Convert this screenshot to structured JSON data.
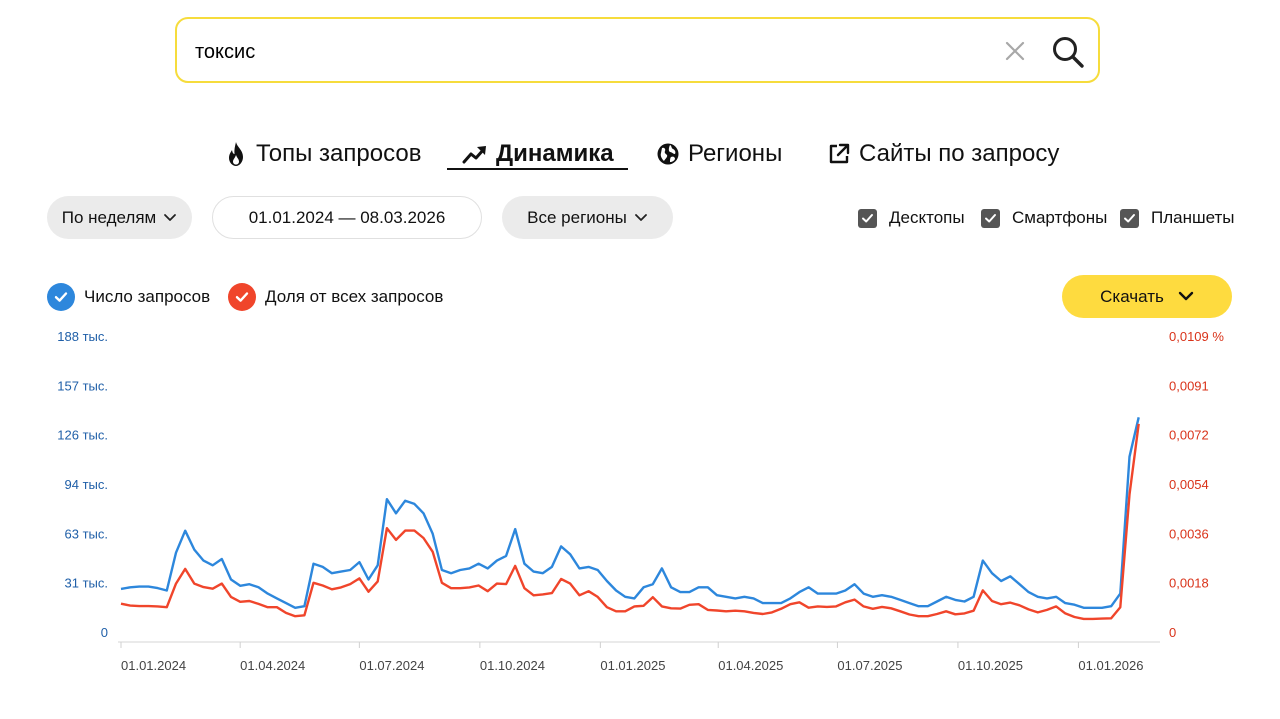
{
  "search": {
    "value": "токсис",
    "clear_icon": "close-icon",
    "submit_icon": "search-icon"
  },
  "tabs": [
    {
      "label": "Топы запросов",
      "icon": "fire-icon",
      "active": false
    },
    {
      "label": "Динамика",
      "icon": "trend-icon",
      "active": true
    },
    {
      "label": "Регионы",
      "icon": "globe-icon",
      "active": false
    },
    {
      "label": "Сайты по запросу",
      "icon": "external-link-icon",
      "active": false
    }
  ],
  "filters": {
    "period": "По неделям",
    "date_range": "01.01.2024 — 08.03.2026",
    "region": "Все регионы",
    "devices": [
      {
        "label": "Десктопы",
        "checked": true
      },
      {
        "label": "Смартфоны",
        "checked": true
      },
      {
        "label": "Планшеты",
        "checked": true
      }
    ]
  },
  "legend": [
    {
      "label": "Число запросов",
      "color": "#2d87dc",
      "checked": true
    },
    {
      "label": "Доля от всех запросов",
      "color": "#f0452b",
      "checked": true
    }
  ],
  "download_label": "Скачать",
  "chart_data": {
    "type": "line",
    "x_start": "2024-01-01",
    "x_end": "2026-03-02",
    "x_step": "week",
    "x_tick_labels": [
      "01.01.2024",
      "01.04.2024",
      "01.07.2024",
      "01.10.2024",
      "01.01.2025",
      "01.04.2025",
      "01.07.2025",
      "01.10.2025",
      "01.01.2026"
    ],
    "y_left_ticks": [
      "0",
      "31 тыс.",
      "63 тыс.",
      "94 тыс.",
      "126 тыс.",
      "157 тыс.",
      "188 тыс."
    ],
    "y_right_ticks": [
      "0",
      "0,0018",
      "0,0036",
      "0,0054",
      "0,0072",
      "0,0091",
      "0,0109 %"
    ],
    "ylim_left": [
      0,
      188000
    ],
    "ylim_right": [
      0,
      0.0109
    ],
    "grid": false,
    "series": [
      {
        "name": "Число запросов",
        "axis": "left",
        "color": "#2d87dc",
        "values": [
          28000,
          29000,
          29500,
          29500,
          28500,
          27000,
          51000,
          65000,
          53000,
          46000,
          43000,
          47000,
          34000,
          30000,
          31000,
          29000,
          25000,
          22000,
          19000,
          16000,
          17000,
          44000,
          42000,
          38000,
          39000,
          40000,
          45000,
          34000,
          43000,
          85000,
          76000,
          84000,
          82000,
          76000,
          63000,
          40000,
          38000,
          40000,
          41000,
          44000,
          41000,
          46000,
          49000,
          66000,
          44000,
          39000,
          38000,
          42000,
          55000,
          50000,
          41000,
          42000,
          40000,
          33000,
          27000,
          23000,
          22000,
          29000,
          31000,
          41000,
          29000,
          26000,
          26000,
          29000,
          29000,
          24000,
          23000,
          22000,
          23000,
          22000,
          19000,
          19000,
          19000,
          22000,
          26000,
          29000,
          25000,
          25000,
          25000,
          27000,
          31000,
          25000,
          23000,
          24000,
          23000,
          21000,
          19000,
          17000,
          17000,
          20000,
          23000,
          21000,
          20000,
          23000,
          46000,
          38000,
          33000,
          36000,
          31000,
          26000,
          23000,
          22000,
          23000,
          19000,
          18000,
          16000,
          16000,
          16000,
          17000,
          25000,
          112000,
          137000
        ]
      },
      {
        "name": "Доля от всех запросов",
        "axis": "right",
        "color": "#f0452b",
        "values": [
          0.00108,
          0.00101,
          0.00099,
          0.00099,
          0.00098,
          0.00095,
          0.00182,
          0.00236,
          0.00182,
          0.00169,
          0.00163,
          0.00182,
          0.00133,
          0.00115,
          0.00118,
          0.00107,
          0.00095,
          0.00095,
          0.00074,
          0.00062,
          0.00065,
          0.00185,
          0.00175,
          0.00161,
          0.00168,
          0.0018,
          0.00201,
          0.00152,
          0.0019,
          0.00386,
          0.00343,
          0.00377,
          0.00377,
          0.0035,
          0.00299,
          0.00185,
          0.00165,
          0.00165,
          0.00168,
          0.00175,
          0.00154,
          0.00182,
          0.0018,
          0.00247,
          0.00165,
          0.00139,
          0.00142,
          0.00147,
          0.00199,
          0.00182,
          0.00139,
          0.00154,
          0.00133,
          0.00095,
          0.0008,
          0.0008,
          0.00098,
          0.001,
          0.00132,
          0.00098,
          0.00091,
          0.0009,
          0.00104,
          0.00106,
          0.00085,
          0.00083,
          0.0008,
          0.00082,
          0.0008,
          0.00074,
          0.0007,
          0.00076,
          0.00089,
          0.00106,
          0.00113,
          0.00093,
          0.00098,
          0.00096,
          0.00098,
          0.00113,
          0.00123,
          0.00098,
          0.00089,
          0.00096,
          0.00091,
          0.0008,
          0.00068,
          0.00062,
          0.00062,
          0.0007,
          0.0008,
          0.00069,
          0.00072,
          0.00082,
          0.00157,
          0.00118,
          0.00106,
          0.00112,
          0.00102,
          0.00087,
          0.00076,
          0.00085,
          0.00098,
          0.00072,
          0.00059,
          0.00052,
          0.00052,
          0.00053,
          0.00054,
          0.00095,
          0.0051,
          0.0077
        ]
      }
    ]
  }
}
